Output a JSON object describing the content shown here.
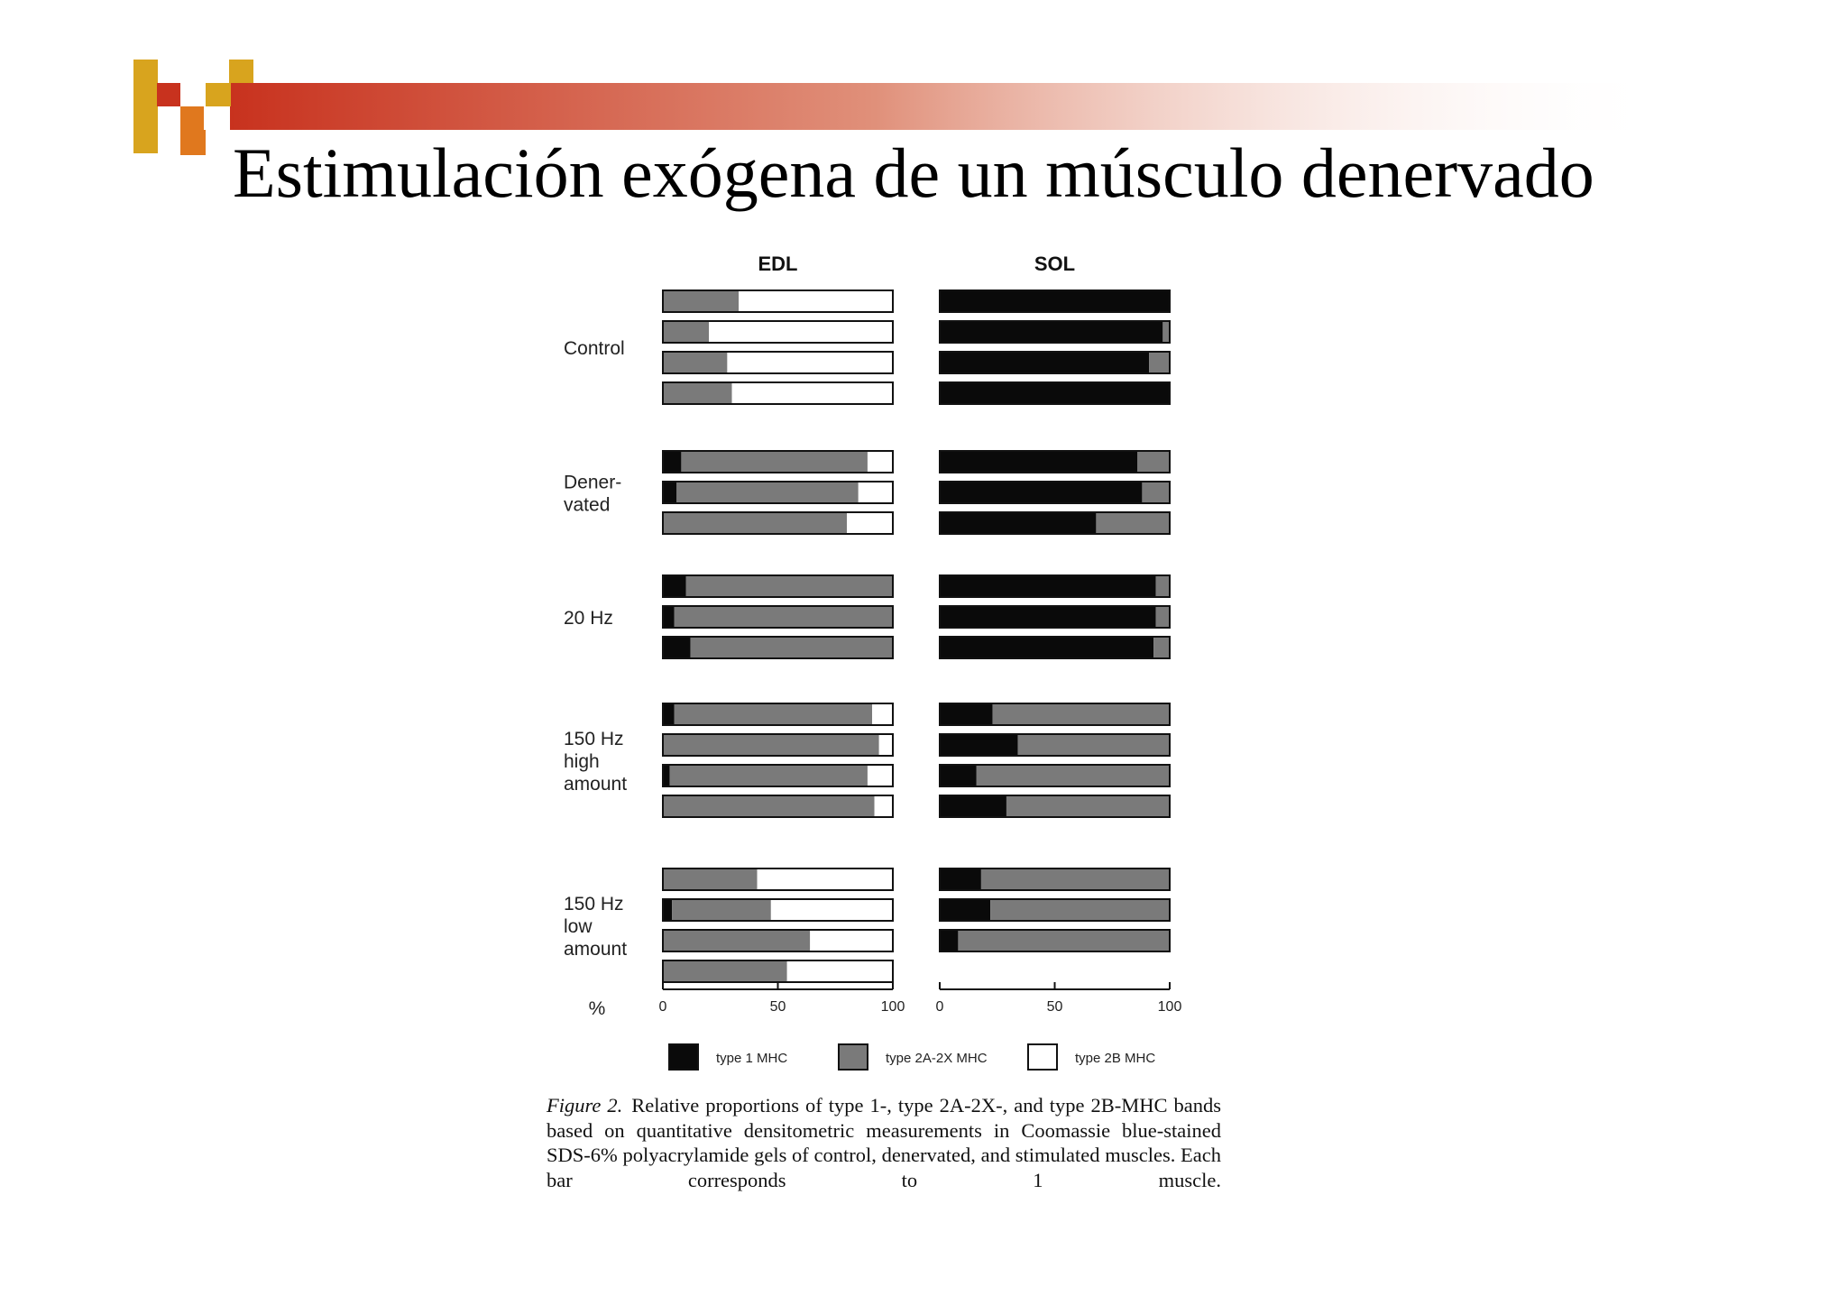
{
  "slide": {
    "title": "Estimulación exógena de un músculo denervado"
  },
  "colors": {
    "type1": "#0a0a0a",
    "type2a2x": "#7a7a7a",
    "type2b": "#ffffff",
    "accent_red": "#c8321e",
    "accent_orange": "#e0781e",
    "accent_gold": "#d8a41e"
  },
  "chart_data": {
    "type": "bar",
    "orientation": "horizontal",
    "stacked": true,
    "panels": [
      {
        "name": "EDL",
        "xlim": [
          0,
          100
        ],
        "ticks": [
          "0",
          "50",
          "100"
        ]
      },
      {
        "name": "SOL",
        "xlim": [
          0,
          100
        ],
        "ticks": [
          "0",
          "50",
          "100"
        ]
      }
    ],
    "xlabel": "%",
    "legend": [
      {
        "key": "type1",
        "label": "type 1 MHC"
      },
      {
        "key": "type2a2x",
        "label": "type 2A-2X MHC"
      },
      {
        "key": "type2b",
        "label": "type 2B MHC"
      }
    ],
    "legend_position": "bottom",
    "groups": [
      {
        "label_lines": [
          "Control"
        ],
        "EDL": [
          [
            0,
            33,
            67
          ],
          [
            0,
            20,
            80
          ],
          [
            0,
            28,
            72
          ],
          [
            0,
            30,
            70
          ]
        ],
        "SOL": [
          [
            100,
            0,
            0
          ],
          [
            97,
            3,
            0
          ],
          [
            91,
            9,
            0
          ],
          [
            100,
            0,
            0
          ]
        ]
      },
      {
        "label_lines": [
          "Dener-",
          "vated"
        ],
        "EDL": [
          [
            8,
            81,
            11
          ],
          [
            6,
            79,
            15
          ],
          [
            0,
            80,
            20
          ]
        ],
        "SOL": [
          [
            86,
            14,
            0
          ],
          [
            88,
            12,
            0
          ],
          [
            68,
            32,
            0
          ]
        ]
      },
      {
        "label_lines": [
          "20 Hz"
        ],
        "EDL": [
          [
            10,
            90,
            0
          ],
          [
            5,
            95,
            0
          ],
          [
            12,
            88,
            0
          ]
        ],
        "SOL": [
          [
            94,
            6,
            0
          ],
          [
            94,
            6,
            0
          ],
          [
            93,
            7,
            0
          ]
        ]
      },
      {
        "label_lines": [
          "150 Hz",
          "high",
          "amount"
        ],
        "EDL": [
          [
            5,
            86,
            9
          ],
          [
            0,
            94,
            6
          ],
          [
            3,
            86,
            11
          ],
          [
            0,
            92,
            8
          ]
        ],
        "SOL": [
          [
            23,
            77,
            0
          ],
          [
            34,
            66,
            0
          ],
          [
            16,
            84,
            0
          ],
          [
            29,
            71,
            0
          ]
        ]
      },
      {
        "label_lines": [
          "150 Hz",
          "low",
          "amount"
        ],
        "EDL": [
          [
            0,
            41,
            59
          ],
          [
            4,
            43,
            53
          ],
          [
            0,
            64,
            36
          ],
          [
            0,
            54,
            46
          ]
        ],
        "SOL": [
          [
            18,
            82,
            0
          ],
          [
            22,
            78,
            0
          ],
          [
            8,
            92,
            0
          ]
        ]
      }
    ],
    "caption_lead": "Figure 2.",
    "caption_text": "Relative proportions of type 1-, type 2A-2X-, and type 2B-MHC bands based on quantitative densitometric measurements in Coomassie blue-stained SDS-6% polyacrylamide gels of control, denervated, and stimulated muscles. Each bar corresponds to 1 muscle."
  }
}
